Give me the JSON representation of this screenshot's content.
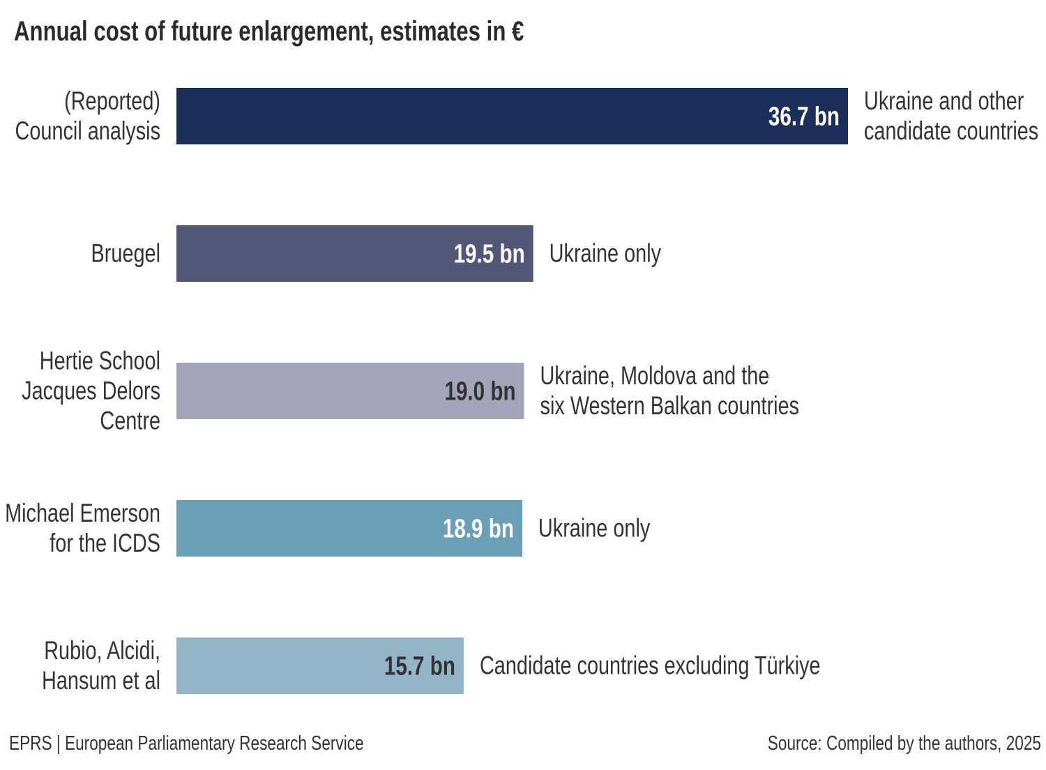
{
  "chart_data": {
    "type": "bar",
    "orientation": "horizontal",
    "title": "Annual cost of future enlargement, estimates in €",
    "unit": "bn",
    "categories": [
      [
        "(Reported)",
        "Council analysis"
      ],
      [
        "Bruegel"
      ],
      [
        "Hertie School",
        "Jacques Delors",
        "Centre"
      ],
      [
        "Michael Emerson",
        "for the ICDS"
      ],
      [
        "Rubio, Alcidi,",
        "Hansum et al"
      ]
    ],
    "values": [
      36.7,
      19.5,
      19.0,
      18.9,
      15.7
    ],
    "value_labels": [
      "36.7 bn",
      "19.5 bn",
      "19.0 bn",
      "18.9 bn",
      "15.7 bn"
    ],
    "annotations": [
      [
        "Ukraine and other",
        "candidate countries"
      ],
      [
        "Ukraine only"
      ],
      [
        "Ukraine, Moldova and the",
        "six Western Balkan countries"
      ],
      [
        "Ukraine only"
      ],
      [
        "Candidate countries excluding Türkiye"
      ]
    ],
    "colors": [
      "#1c2f5a",
      "#525677",
      "#a3a4b9",
      "#6a9fb6",
      "#94b5c8"
    ],
    "value_label_colors": [
      "#ffffff",
      "#ffffff",
      "#333333",
      "#ffffff",
      "#333333"
    ],
    "xlim": [
      0,
      36.7
    ],
    "grid": false
  },
  "footer": {
    "left": "EPRS | European Parliamentary Research Service",
    "right": "Source: Compiled by the authors, 2025"
  }
}
